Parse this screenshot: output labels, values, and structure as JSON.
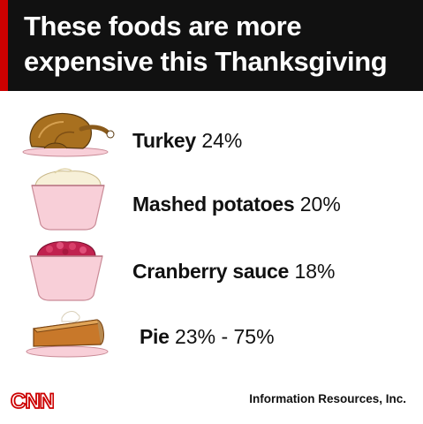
{
  "header": {
    "title": "These foods are more expensive this Thanksgiving",
    "accent_color": "#cc0000"
  },
  "items": [
    {
      "name": "Turkey",
      "value": "24%",
      "icon": "turkey-icon"
    },
    {
      "name": "Mashed potatoes",
      "value": "20%",
      "icon": "mashed-potatoes-bowl-icon"
    },
    {
      "name": "Cranberry sauce",
      "value": "18%",
      "icon": "cranberry-sauce-bowl-icon"
    },
    {
      "name": "Pie",
      "value": "23% - 75%",
      "icon": "pie-slice-icon"
    }
  ],
  "footer": {
    "logo_text": "CNN",
    "source": "Information Resources, Inc."
  },
  "colors": {
    "bowl_pink": "#f8cfd8",
    "cnn_red": "#cc0000"
  }
}
